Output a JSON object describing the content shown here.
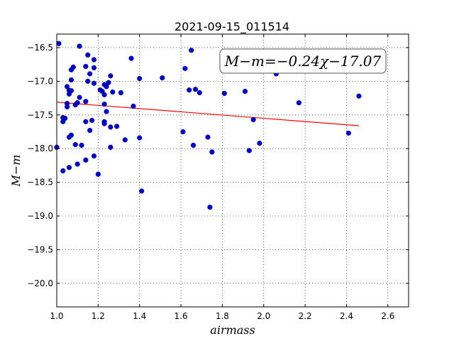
{
  "chart_data": {
    "type": "scatter",
    "title": "2021-09-15_011514",
    "xlabel": "airmass",
    "ylabel": "M−m",
    "xlim": [
      1.0,
      2.7
    ],
    "ylim": [
      -16.3,
      -20.35
    ],
    "y_inverted": true,
    "xticks": [
      1.0,
      1.2,
      1.4,
      1.6,
      1.8,
      2.0,
      2.2,
      2.4,
      2.6
    ],
    "xtick_labels": [
      "1.0",
      "1.2",
      "1.4",
      "1.6",
      "1.8",
      "2.0",
      "2.2",
      "2.4",
      "2.6"
    ],
    "yticks": [
      -16.5,
      -17.0,
      -17.5,
      -18.0,
      -18.5,
      -19.0,
      -19.5,
      -20.0
    ],
    "ytick_labels": [
      "−16.5",
      "−17.0",
      "−17.5",
      "−18.0",
      "−18.5",
      "−19.0",
      "−19.5",
      "−20.0"
    ],
    "grid": true,
    "point_color": "#0000cc",
    "line_color": "#ff0000",
    "annotation": "M−m=−0.24χ−17.07",
    "fit": {
      "slope": -0.24,
      "intercept": -17.07,
      "x_range": [
        1.0,
        2.46
      ]
    },
    "points": [
      [
        1.01,
        -16.44
      ],
      [
        1.0,
        -17.98
      ],
      [
        1.03,
        -18.33
      ],
      [
        1.03,
        -17.54
      ],
      [
        1.03,
        -17.6
      ],
      [
        1.04,
        -17.55
      ],
      [
        1.05,
        -17.38
      ],
      [
        1.05,
        -17.33
      ],
      [
        1.05,
        -17.08
      ],
      [
        1.06,
        -17.14
      ],
      [
        1.06,
        -17.19
      ],
      [
        1.06,
        -17.83
      ],
      [
        1.06,
        -18.28
      ],
      [
        1.07,
        -16.83
      ],
      [
        1.07,
        -16.98
      ],
      [
        1.07,
        -17.14
      ],
      [
        1.07,
        -17.8
      ],
      [
        1.08,
        -16.79
      ],
      [
        1.09,
        -17.35
      ],
      [
        1.09,
        -17.94
      ],
      [
        1.1,
        -17.32
      ],
      [
        1.1,
        -18.23
      ],
      [
        1.11,
        -16.48
      ],
      [
        1.11,
        -17.24
      ],
      [
        1.12,
        -17.95
      ],
      [
        1.14,
        -16.78
      ],
      [
        1.14,
        -17.3
      ],
      [
        1.14,
        -17.6
      ],
      [
        1.14,
        -18.17
      ],
      [
        1.15,
        -17.0
      ],
      [
        1.15,
        -16.61
      ],
      [
        1.16,
        -16.89
      ],
      [
        1.16,
        -17.73
      ],
      [
        1.17,
        -17.58
      ],
      [
        1.18,
        -16.68
      ],
      [
        1.18,
        -16.8
      ],
      [
        1.18,
        -17.03
      ],
      [
        1.18,
        -18.11
      ],
      [
        1.2,
        -18.38
      ],
      [
        1.21,
        -17.13
      ],
      [
        1.22,
        -17.15
      ],
      [
        1.23,
        -17.05
      ],
      [
        1.23,
        -17.2
      ],
      [
        1.23,
        -17.34
      ],
      [
        1.23,
        -17.6
      ],
      [
        1.23,
        -17.63
      ],
      [
        1.24,
        -17.45
      ],
      [
        1.24,
        -17.08
      ],
      [
        1.25,
        -17.02
      ],
      [
        1.26,
        -16.92
      ],
      [
        1.26,
        -17.68
      ],
      [
        1.26,
        -17.98
      ],
      [
        1.27,
        -17.16
      ],
      [
        1.29,
        -17.67
      ],
      [
        1.31,
        -17.17
      ],
      [
        1.33,
        -17.87
      ],
      [
        1.36,
        -16.66
      ],
      [
        1.37,
        -17.37
      ],
      [
        1.4,
        -17.84
      ],
      [
        1.4,
        -16.96
      ],
      [
        1.41,
        -18.63
      ],
      [
        1.51,
        -16.95
      ],
      [
        1.61,
        -17.75
      ],
      [
        1.62,
        -16.81
      ],
      [
        1.65,
        -16.54
      ],
      [
        1.64,
        -17.13
      ],
      [
        1.67,
        -17.12
      ],
      [
        1.69,
        -17.17
      ],
      [
        1.66,
        -17.95
      ],
      [
        1.73,
        -17.83
      ],
      [
        1.74,
        -18.87
      ],
      [
        1.75,
        -18.05
      ],
      [
        1.81,
        -17.18
      ],
      [
        1.91,
        -17.15
      ],
      [
        1.93,
        -18.03
      ],
      [
        1.95,
        -17.57
      ],
      [
        1.98,
        -17.92
      ],
      [
        2.06,
        -16.89
      ],
      [
        2.17,
        -17.32
      ],
      [
        2.41,
        -17.77
      ],
      [
        2.46,
        -17.22
      ]
    ]
  }
}
